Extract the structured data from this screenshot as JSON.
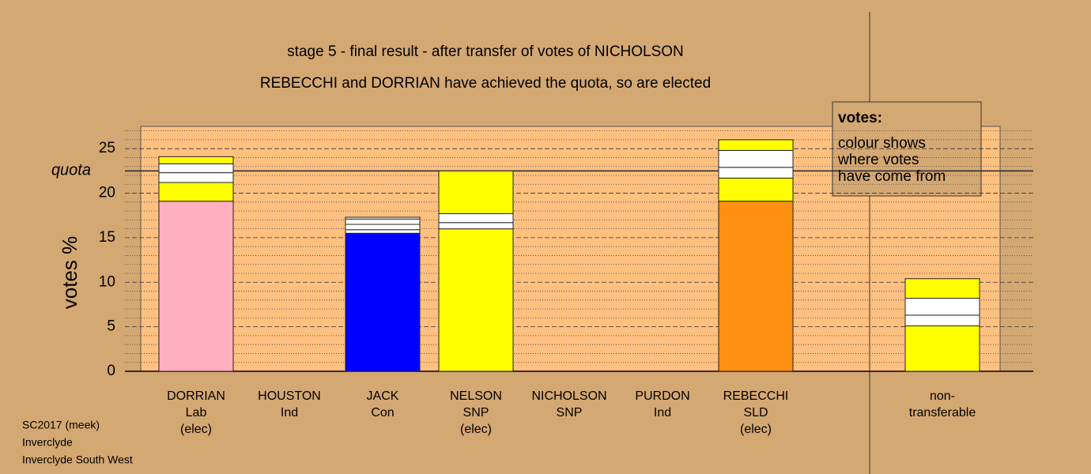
{
  "chart_data": {
    "type": "stacked-bar",
    "title": "stage 5 - final result - after transfer of votes of NICHOLSON",
    "subtitle": "REBECCHI and DORRIAN have achieved the quota, so are elected",
    "y_label": "votes %",
    "quota_label": "quota",
    "quota": 22.5,
    "ylim": [
      0,
      27.5
    ],
    "yticks": [
      0,
      5,
      10,
      15,
      20,
      25
    ],
    "minor_yticks": [
      1,
      2,
      3,
      4,
      6,
      7,
      8,
      9,
      11,
      12,
      13,
      14,
      16,
      17,
      18,
      19,
      21,
      22,
      23,
      24,
      26,
      27
    ],
    "categories": [
      [
        "DORRIAN",
        "Lab",
        "(elec)"
      ],
      [
        "HOUSTON",
        "Ind"
      ],
      [
        "JACK",
        "Con"
      ],
      [
        "NELSON",
        "SNP",
        "(elec)"
      ],
      [
        "NICHOLSON",
        "SNP"
      ],
      [
        "PURDON",
        "Ind"
      ],
      [
        "REBECCHI",
        "SLD",
        "(elec)"
      ],
      null,
      [
        "non-",
        "transferable"
      ]
    ],
    "bars": [
      [
        {
          "color": "#ffb0c0",
          "value": 19.1
        },
        {
          "color": "#ffff00",
          "value": 2.1
        },
        {
          "color": "#ffffff",
          "value": 1.1
        },
        {
          "color": "#ffffff",
          "value": 1.0
        },
        {
          "color": "#ffff00",
          "value": 0.8
        }
      ],
      [],
      [
        {
          "color": "#0000ff",
          "value": 15.5
        },
        {
          "color": "#ffffff",
          "value": 0.4
        },
        {
          "color": "#ffffff",
          "value": 0.6
        },
        {
          "color": "#ffffff",
          "value": 0.6
        },
        {
          "color": "#ffffff",
          "value": 0.2
        }
      ],
      [
        {
          "color": "#ffff00",
          "value": 16.0
        },
        {
          "color": "#ffffff",
          "value": 0.7
        },
        {
          "color": "#ffffff",
          "value": 1.0
        },
        {
          "color": "#ffff00",
          "value": 4.8
        }
      ],
      [],
      [],
      [
        {
          "color": "#ff9010",
          "value": 19.1
        },
        {
          "color": "#ffff00",
          "value": 2.6
        },
        {
          "color": "#ffffff",
          "value": 1.2
        },
        {
          "color": "#ffffff",
          "value": 1.9
        },
        {
          "color": "#ffff00",
          "value": 1.2
        }
      ],
      [],
      [
        {
          "color": "#ffff00",
          "value": 5.1
        },
        {
          "color": "#ffffff",
          "value": 1.2
        },
        {
          "color": "#ffffff",
          "value": 1.9
        },
        {
          "color": "#ffff00",
          "value": 2.2
        }
      ]
    ],
    "legend": {
      "title": "votes:",
      "lines": [
        "colour shows",
        "where votes",
        "have come from"
      ]
    },
    "footer": [
      "SC2017 (meek)",
      "Inverclyde",
      "Inverclyde South West"
    ]
  }
}
